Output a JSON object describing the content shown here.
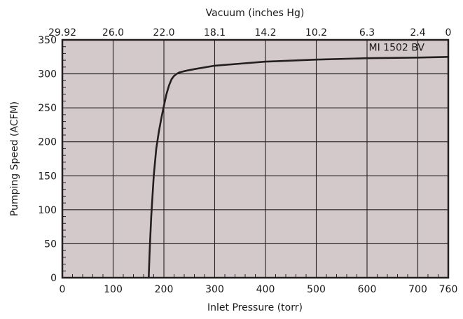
{
  "chart_data": {
    "type": "line",
    "title": "",
    "xlabel": "Inlet Pressure (torr)",
    "ylabel": "Pumping Speed (ACFM)",
    "top_xlabel": "Vacuum (inches Hg)",
    "xlim": [
      0,
      760
    ],
    "ylim": [
      0,
      350
    ],
    "xticks": [
      0,
      100,
      200,
      300,
      400,
      500,
      600,
      700,
      760
    ],
    "yticks": [
      0,
      50,
      100,
      150,
      200,
      250,
      300,
      350
    ],
    "top_ticks": [
      {
        "at": 0,
        "label": "29.92"
      },
      {
        "at": 100,
        "label": "26.0"
      },
      {
        "at": 200,
        "label": "22.0"
      },
      {
        "at": 300,
        "label": "18.1"
      },
      {
        "at": 400,
        "label": "14.2"
      },
      {
        "at": 500,
        "label": "10.2"
      },
      {
        "at": 600,
        "label": "6.3"
      },
      {
        "at": 700,
        "label": "2.4"
      },
      {
        "at": 760,
        "label": "0"
      }
    ],
    "grid": true,
    "colors": {
      "plot_bg": "#d4c9ca",
      "line": "#231f20",
      "grid": "#231f20"
    },
    "series": [
      {
        "name": "MI 1502 BV",
        "x": [
          170,
          172,
          175,
          180,
          185,
          190,
          195,
          200,
          205,
          210,
          215,
          220,
          225,
          230,
          240,
          260,
          300,
          350,
          400,
          500,
          600,
          700,
          760
        ],
        "y": [
          0,
          40,
          90,
          150,
          190,
          215,
          235,
          253,
          270,
          283,
          292,
          297,
          300,
          302,
          304,
          307,
          312,
          315,
          318,
          321,
          323,
          324,
          325
        ]
      }
    ]
  }
}
